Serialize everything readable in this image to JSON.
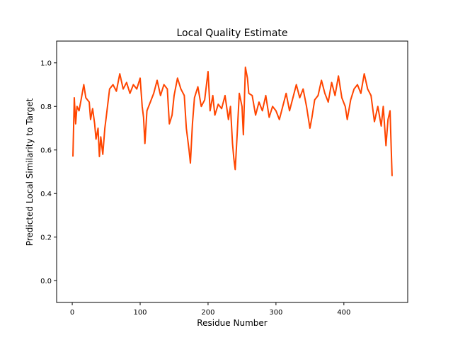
{
  "chart_data": {
    "type": "line",
    "title": "Local Quality Estimate",
    "x_label": "Residue Number",
    "y_label": "Predicted Local Similarity to Target",
    "color": "#ff4500",
    "x": [
      1,
      3,
      5,
      7,
      10,
      13,
      17,
      20,
      25,
      27,
      30,
      33,
      35,
      38,
      40,
      42,
      45,
      48,
      50,
      55,
      60,
      65,
      70,
      75,
      80,
      85,
      90,
      95,
      100,
      103,
      105,
      107,
      110,
      115,
      120,
      125,
      130,
      135,
      140,
      143,
      147,
      150,
      155,
      160,
      165,
      168,
      172,
      174,
      177,
      180,
      185,
      190,
      195,
      200,
      203,
      207,
      210,
      215,
      220,
      225,
      230,
      233,
      236,
      238,
      240,
      243,
      246,
      250,
      252,
      255,
      258,
      260,
      265,
      270,
      275,
      280,
      285,
      290,
      295,
      300,
      305,
      310,
      315,
      320,
      325,
      330,
      335,
      340,
      345,
      350,
      353,
      357,
      362,
      367,
      372,
      377,
      382,
      387,
      392,
      397,
      402,
      405,
      410,
      415,
      420,
      425,
      430,
      435,
      440,
      445,
      450,
      455,
      458,
      462,
      465,
      468,
      471
    ],
    "values": [
      0.57,
      0.84,
      0.72,
      0.8,
      0.78,
      0.83,
      0.9,
      0.84,
      0.82,
      0.74,
      0.79,
      0.72,
      0.65,
      0.7,
      0.57,
      0.66,
      0.58,
      0.7,
      0.75,
      0.88,
      0.9,
      0.87,
      0.95,
      0.88,
      0.91,
      0.86,
      0.9,
      0.88,
      0.93,
      0.8,
      0.75,
      0.63,
      0.78,
      0.82,
      0.86,
      0.92,
      0.85,
      0.9,
      0.88,
      0.72,
      0.76,
      0.85,
      0.93,
      0.88,
      0.85,
      0.7,
      0.6,
      0.54,
      0.72,
      0.84,
      0.89,
      0.8,
      0.83,
      0.96,
      0.78,
      0.85,
      0.76,
      0.81,
      0.79,
      0.85,
      0.74,
      0.8,
      0.63,
      0.56,
      0.51,
      0.68,
      0.86,
      0.8,
      0.67,
      0.98,
      0.93,
      0.86,
      0.85,
      0.76,
      0.82,
      0.78,
      0.85,
      0.75,
      0.8,
      0.78,
      0.74,
      0.8,
      0.86,
      0.78,
      0.84,
      0.9,
      0.84,
      0.88,
      0.8,
      0.7,
      0.75,
      0.83,
      0.85,
      0.92,
      0.86,
      0.82,
      0.91,
      0.85,
      0.94,
      0.84,
      0.8,
      0.74,
      0.83,
      0.88,
      0.9,
      0.86,
      0.95,
      0.88,
      0.85,
      0.73,
      0.8,
      0.71,
      0.8,
      0.62,
      0.74,
      0.78,
      0.48
    ],
    "xlim": [
      -23,
      494
    ],
    "xticks": [
      0,
      100,
      200,
      300,
      400
    ],
    "ylim": [
      -0.1,
      1.1
    ],
    "yticks": [
      {
        "value": 0,
        "label": "0.0"
      },
      {
        "value": 0.2,
        "label": "0.2"
      },
      {
        "value": 0.4,
        "label": "0.4"
      },
      {
        "value": 0.6,
        "label": "0.6"
      },
      {
        "value": 0.8,
        "label": "0.8"
      },
      {
        "value": 1,
        "label": "1.0"
      }
    ]
  }
}
